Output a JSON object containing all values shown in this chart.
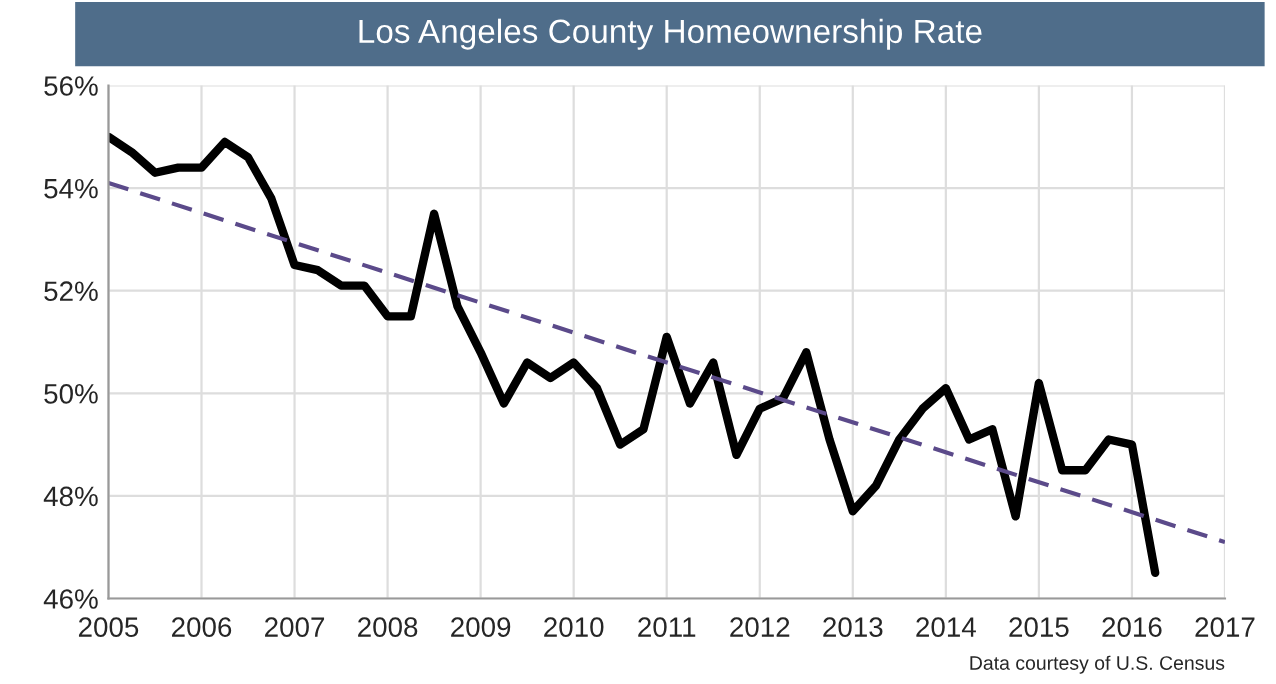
{
  "chart_data": {
    "type": "line",
    "title": "Los Angeles County Homeownership Rate",
    "x": [
      2005.0,
      2005.25,
      2005.5,
      2005.75,
      2006.0,
      2006.25,
      2006.5,
      2006.75,
      2007.0,
      2007.25,
      2007.5,
      2007.75,
      2008.0,
      2008.25,
      2008.5,
      2008.75,
      2009.0,
      2009.25,
      2009.5,
      2009.75,
      2010.0,
      2010.25,
      2010.5,
      2010.75,
      2011.0,
      2011.25,
      2011.5,
      2011.75,
      2012.0,
      2012.25,
      2012.5,
      2012.75,
      2013.0,
      2013.25,
      2013.5,
      2013.75,
      2014.0,
      2014.25,
      2014.5,
      2014.75,
      2015.0,
      2015.25,
      2015.5,
      2015.75,
      2016.0,
      2016.25
    ],
    "series": [
      {
        "color": "#000000",
        "values": [
          55.0,
          54.7,
          54.3,
          54.4,
          54.4,
          54.9,
          54.6,
          53.8,
          52.5,
          52.4,
          52.1,
          52.1,
          51.5,
          51.5,
          53.5,
          51.7,
          50.8,
          49.8,
          50.6,
          50.3,
          50.6,
          50.1,
          49.0,
          49.3,
          51.1,
          49.8,
          50.6,
          48.8,
          49.7,
          49.9,
          50.8,
          49.1,
          47.7,
          48.2,
          49.1,
          49.7,
          50.1,
          49.1,
          49.3,
          47.6,
          50.2,
          48.5,
          48.5,
          49.1,
          49.0,
          46.5
        ],
        "line_style": "solid"
      },
      {
        "type": "line",
        "color": "#5b4a8a",
        "x": [
          2005,
          2017
        ],
        "values": [
          54.1,
          47.1
        ],
        "line_style": "dashed"
      }
    ],
    "xlim": [
      2005,
      2017
    ],
    "xticks": [
      2005,
      2006,
      2007,
      2008,
      2009,
      2010,
      2011,
      2012,
      2013,
      2014,
      2015,
      2016,
      2017
    ],
    "ylim": [
      46,
      56
    ],
    "yticks": [
      {
        "value": 46,
        "label": "46%"
      },
      {
        "value": 48,
        "label": "48%"
      },
      {
        "value": 50,
        "label": "50%"
      },
      {
        "value": 52,
        "label": "52%"
      },
      {
        "value": 54,
        "label": "54%"
      },
      {
        "value": 56,
        "label": "56%"
      }
    ],
    "grid": true,
    "legend": false,
    "annotations": [
      "Data courtesy of U.S. Census"
    ]
  }
}
